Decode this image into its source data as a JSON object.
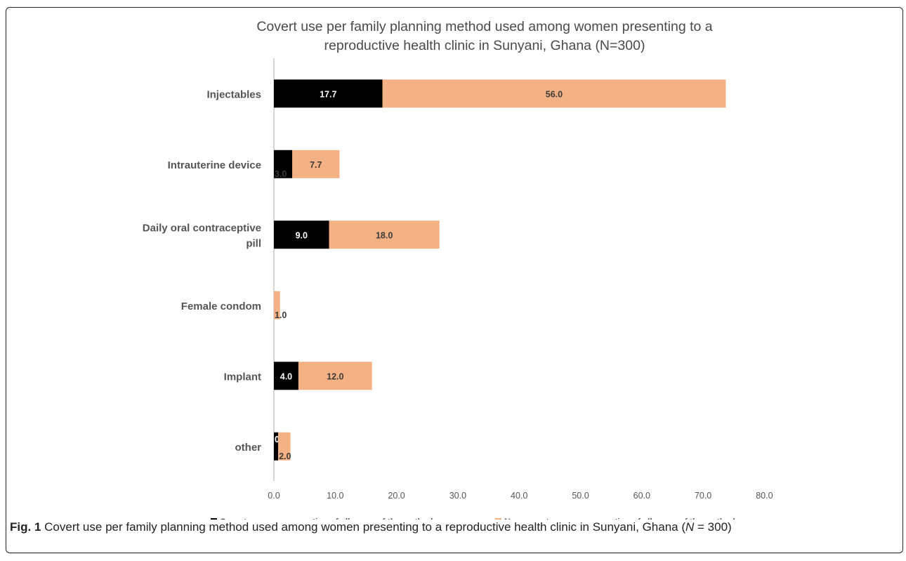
{
  "figure": {
    "caption_label": "Fig. 1",
    "caption_text": "Covert use per family planning method used among women presenting to a reproductive health clinic in Sunyani, Ghana (",
    "caption_n": "N",
    "caption_end": " = 300)"
  },
  "chart_data": {
    "type": "bar",
    "orientation": "horizontal",
    "stacked": true,
    "title_lines": [
      "Covert use per family planning method used among women presenting to a",
      "reproductive health clinic in Sunyani, Ghana (N=300)"
    ],
    "categories": [
      [
        "Injectables"
      ],
      [
        "Intrauterine device"
      ],
      [
        "Daily oral contraceptive",
        "pill"
      ],
      [
        "Female condom"
      ],
      [
        "Implant"
      ],
      [
        "other"
      ]
    ],
    "series": [
      {
        "name": "Covert users as proportion of all users of the method",
        "color": "#000000",
        "label_color": "#ffffff",
        "values": [
          17.7,
          3.0,
          9.0,
          0,
          4.0,
          0.7
        ],
        "labels": [
          "17.7",
          "3.0",
          "9.0",
          "",
          "4.0",
          "0.7"
        ]
      },
      {
        "name": "Non-covert users as proportion of all users of the method",
        "color": "#f4b183",
        "label_color": "#3a3a3a",
        "values": [
          56.0,
          7.7,
          18.0,
          1.0,
          12.0,
          2.0
        ],
        "labels": [
          "56.0",
          "7.7",
          "18.0",
          "1.0",
          "12.0",
          "2.0"
        ]
      }
    ],
    "x_ticks": [
      "0.0",
      "10.0",
      "20.0",
      "30.0",
      "40.0",
      "50.0",
      "60.0",
      "70.0",
      "80.0"
    ],
    "xlim": [
      0,
      80
    ],
    "grid": false,
    "legend_position": "bottom"
  }
}
